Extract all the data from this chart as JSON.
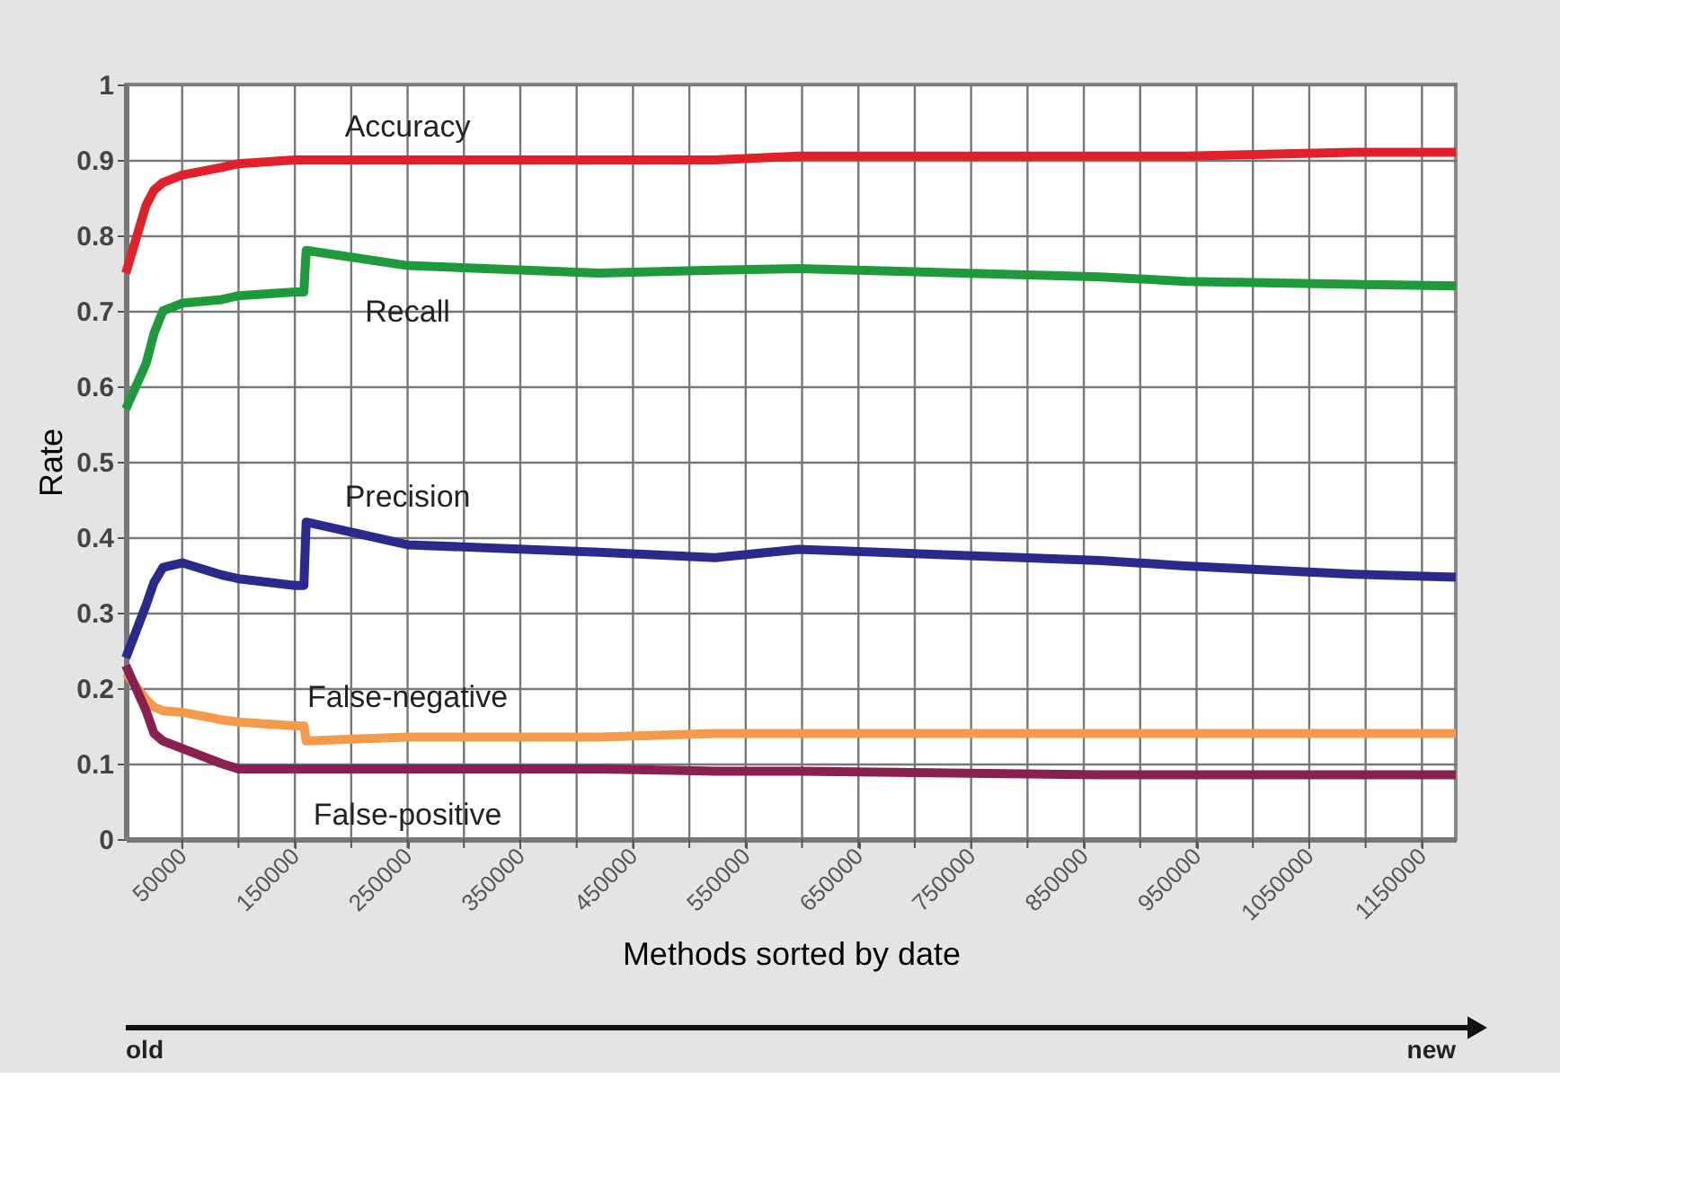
{
  "chart_data": {
    "type": "line",
    "xlabel": "Methods sorted by date",
    "ylabel": "Rate",
    "xlim": [
      0,
      1180000
    ],
    "ylim": [
      0,
      1
    ],
    "xticks": [
      50000,
      {
        "value": 100000,
        "label": null
      },
      150000,
      {
        "value": 200000,
        "label": null
      },
      250000,
      {
        "value": 300000,
        "label": null
      },
      350000,
      {
        "value": 400000,
        "label": null
      },
      450000,
      {
        "value": 500000,
        "label": null
      },
      550000,
      {
        "value": 600000,
        "label": null
      },
      650000,
      {
        "value": 700000,
        "label": null
      },
      750000,
      {
        "value": 800000,
        "label": null
      },
      850000,
      {
        "value": 900000,
        "label": null
      },
      950000,
      {
        "value": 1000000,
        "label": null
      },
      1050000,
      {
        "value": 1100000,
        "label": null
      },
      1150000
    ],
    "yticks": [
      0,
      0.1,
      0.2,
      0.3,
      0.4,
      0.5,
      0.6,
      0.7,
      0.8,
      0.9,
      1
    ],
    "grid": true,
    "legend": false,
    "marker": "none",
    "line_style": "solid",
    "annotations": [
      "old",
      "new"
    ],
    "x": [
      0,
      18000,
      25000,
      33000,
      50000,
      85000,
      100000,
      150000,
      158000,
      160000,
      250000,
      420000,
      523000,
      597000,
      865000,
      940000,
      1090000,
      1180000
    ],
    "series": [
      {
        "name": "Accuracy",
        "color": "#e0202a",
        "values": [
          0.75,
          0.84,
          0.86,
          0.87,
          0.88,
          0.89,
          0.895,
          0.9,
          0.9,
          0.9,
          0.9,
          0.9,
          0.9,
          0.905,
          0.905,
          0.905,
          0.91,
          0.91
        ]
      },
      {
        "name": "Recall",
        "color": "#1e9a3c",
        "values": [
          0.57,
          0.63,
          0.67,
          0.7,
          0.71,
          0.715,
          0.72,
          0.725,
          0.725,
          0.78,
          0.76,
          0.75,
          0.754,
          0.756,
          0.745,
          0.739,
          0.735,
          0.733
        ]
      },
      {
        "name": "Precision",
        "color": "#2a2a8c",
        "values": [
          0.24,
          0.31,
          0.34,
          0.36,
          0.366,
          0.35,
          0.345,
          0.336,
          0.336,
          0.42,
          0.39,
          0.38,
          0.373,
          0.384,
          0.369,
          0.362,
          0.351,
          0.347
        ]
      },
      {
        "name": "False-negative",
        "color": "#f59a4a",
        "values": [
          0.22,
          0.185,
          0.175,
          0.17,
          0.168,
          0.158,
          0.155,
          0.15,
          0.15,
          0.13,
          0.135,
          0.135,
          0.14,
          0.14,
          0.14,
          0.14,
          0.14,
          0.14
        ]
      },
      {
        "name": "False-positive",
        "color": "#8a1f52",
        "values": [
          0.23,
          0.17,
          0.14,
          0.13,
          0.12,
          0.1,
          0.093,
          0.093,
          0.093,
          0.093,
          0.093,
          0.093,
          0.09,
          0.09,
          0.085,
          0.085,
          0.085,
          0.085
        ]
      }
    ]
  }
}
